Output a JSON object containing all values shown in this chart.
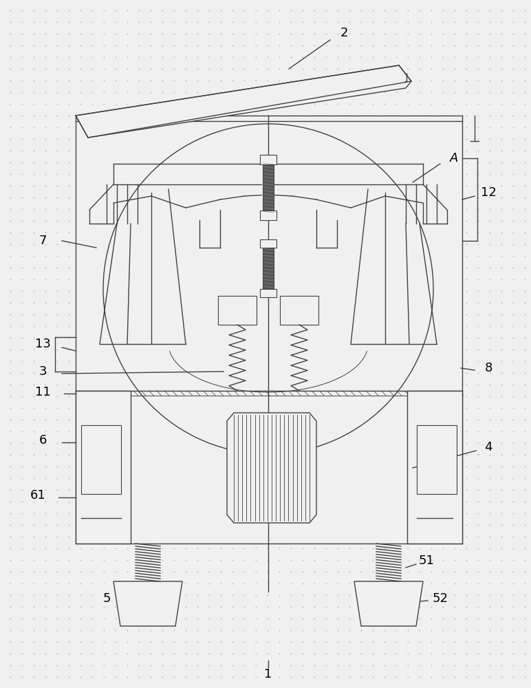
{
  "bg_color": "#f0f0f0",
  "line_color": "#404040",
  "line_width": 1.0,
  "thin_line": 0.7,
  "font_size": 13
}
